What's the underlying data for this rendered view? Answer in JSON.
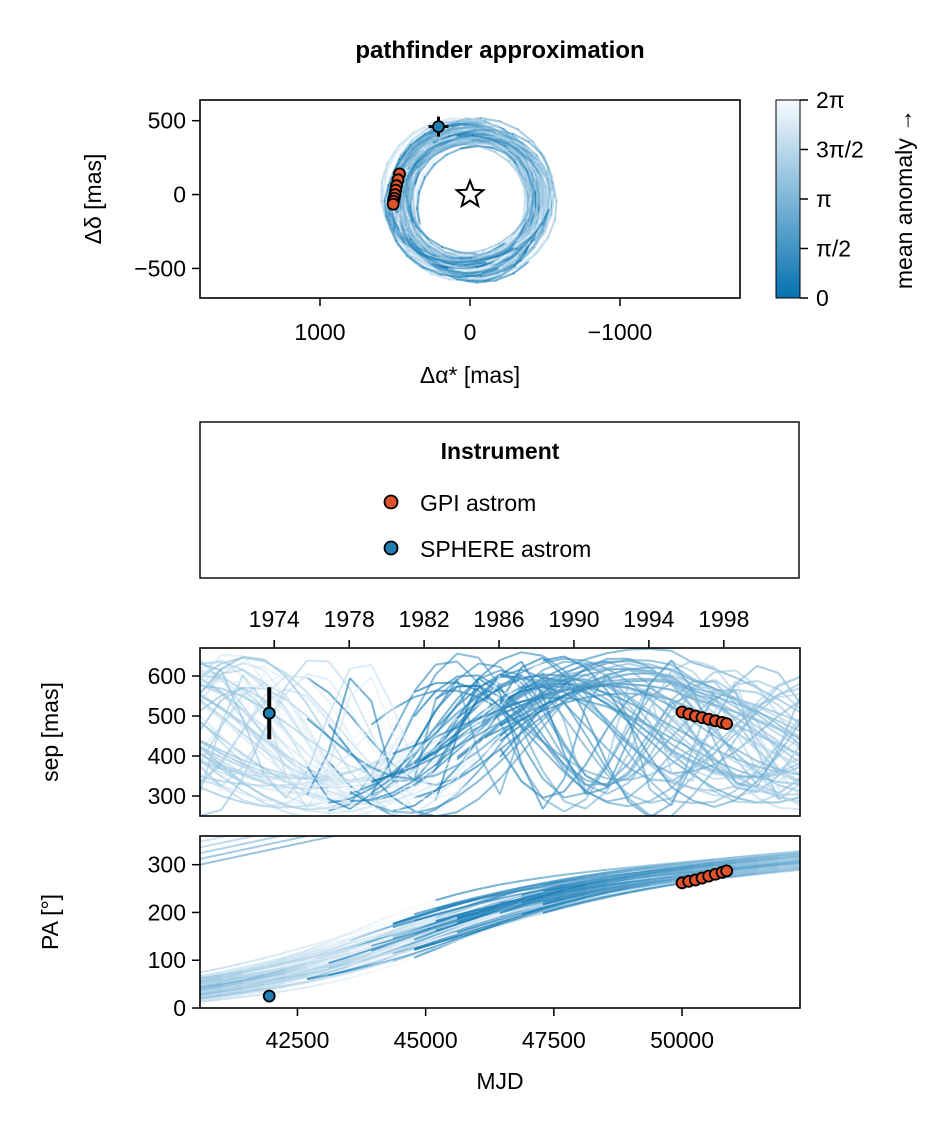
{
  "title": "pathfinder approximation",
  "title_color": "#8b0000",
  "colors": {
    "colormap_low": "#0571b0",
    "colormap_high": "#f7fbff",
    "gpi": "#e0522a",
    "sphere": "#1f7fb4",
    "marker_edge": "#000000"
  },
  "legend": {
    "title": "Instrument",
    "items": [
      {
        "label": "GPI astrom",
        "color": "#e0522a"
      },
      {
        "label": "SPHERE astrom",
        "color": "#1f7fb4"
      }
    ]
  },
  "chart_data": [
    {
      "type": "scatter",
      "panel": "sky",
      "xlabel": "Δα* [mas]",
      "ylabel": "Δδ [mas]",
      "xlim": [
        1800,
        -1800
      ],
      "ylim": [
        -700,
        640
      ],
      "xticks": [
        1000,
        0,
        -1000
      ],
      "xticklabels": [
        "1000",
        "0",
        "−1000"
      ],
      "yticks": [
        500,
        0,
        -500
      ],
      "yticklabels": [
        "500",
        "0",
        "−500"
      ],
      "star_marker": {
        "x": 0,
        "y": 0,
        "symbol": "star"
      },
      "orbit_model": {
        "ra_center": 0,
        "dec_center": -40,
        "a_ra": 520,
        "a_dec": 500,
        "tilt_deg": -12,
        "n_orbits": 60
      },
      "series": [
        {
          "name": "GPI astrom",
          "x": [
            470,
            480,
            490,
            495,
            500,
            505,
            510,
            512
          ],
          "y": [
            140,
            100,
            60,
            30,
            0,
            -25,
            -45,
            -65
          ]
        },
        {
          "name": "SPHERE astrom",
          "x": [
            210
          ],
          "y": [
            460
          ]
        }
      ],
      "colorbar": {
        "label": "mean anomaly →",
        "range": [
          0,
          6.2832
        ],
        "ticks": [
          0,
          1.5708,
          3.1416,
          4.7124,
          6.2832
        ],
        "ticklabels": [
          "0",
          "π/2",
          "π",
          "3π/2",
          "2π"
        ]
      }
    },
    {
      "type": "line",
      "panel": "sep",
      "ylabel": "sep [mas]",
      "xlim": [
        40600,
        52300
      ],
      "ylim": [
        250,
        670
      ],
      "yticks": [
        300,
        400,
        500,
        600
      ],
      "top_axis_label": "",
      "top_ticks": [
        1974,
        1978,
        1982,
        1986,
        1990,
        1994,
        1998
      ],
      "series": [
        {
          "name": "GPI astrom",
          "x": [
            50000,
            50130,
            50260,
            50390,
            50520,
            50650,
            50780,
            50870
          ],
          "y": [
            510,
            505,
            500,
            496,
            492,
            488,
            484,
            481
          ]
        },
        {
          "name": "SPHERE astrom",
          "x": [
            41950
          ],
          "y": [
            507
          ],
          "err": [
            65
          ]
        }
      ]
    },
    {
      "type": "line",
      "panel": "pa",
      "ylabel": "PA [°]",
      "xlabel": "MJD",
      "xlim": [
        40600,
        52300
      ],
      "ylim": [
        0,
        360
      ],
      "yticks": [
        0,
        100,
        200,
        300
      ],
      "xticks": [
        42500,
        45000,
        47500,
        50000
      ],
      "series": [
        {
          "name": "GPI astrom",
          "x": [
            50000,
            50130,
            50260,
            50390,
            50520,
            50650,
            50780,
            50870
          ],
          "y": [
            262,
            265,
            268,
            272,
            276,
            280,
            284,
            287
          ]
        },
        {
          "name": "SPHERE astrom",
          "x": [
            41950
          ],
          "y": [
            25
          ]
        }
      ]
    }
  ]
}
